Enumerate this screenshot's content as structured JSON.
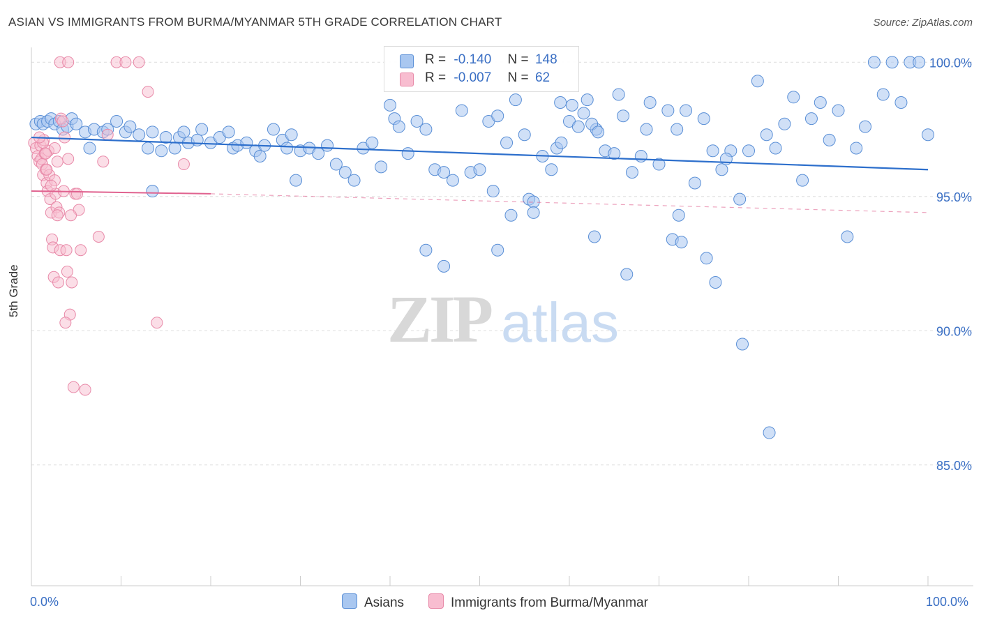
{
  "header": {
    "title": "ASIAN VS IMMIGRANTS FROM BURMA/MYANMAR 5TH GRADE CORRELATION CHART",
    "source": "Source: ZipAtlas.com"
  },
  "watermark": {
    "zip": "ZIP",
    "atlas": "atlas"
  },
  "stats_legend": {
    "rows": [
      {
        "r_label": "R =",
        "r_value": "-0.140",
        "n_label": "N =",
        "n_value": "148",
        "color": "#a9c7f0"
      },
      {
        "r_label": "R =",
        "r_value": "-0.007",
        "n_label": "N =",
        "n_value": "62",
        "color": "#f8bdd0"
      }
    ]
  },
  "bottom_legend": {
    "items": [
      {
        "label": "Asians",
        "color": "#a9c7f0"
      },
      {
        "label": "Immigrants from Burma/Myanmar",
        "color": "#f8bdd0"
      }
    ]
  },
  "chart_data": {
    "type": "scatter",
    "title": "ASIAN VS IMMIGRANTS FROM BURMA/MYANMAR 5TH GRADE CORRELATION CHART",
    "xlabel": "",
    "ylabel": "5th Grade",
    "xlim": [
      0,
      100
    ],
    "ylim": [
      80.5,
      100.5
    ],
    "x_tick_labels": [
      "0.0%",
      "100.0%"
    ],
    "y_ticks": [
      {
        "value": 100,
        "label": "100.0%"
      },
      {
        "value": 95,
        "label": "95.0%"
      },
      {
        "value": 90,
        "label": "90.0%"
      },
      {
        "value": 85,
        "label": "85.0%"
      }
    ],
    "grid": true,
    "legend_position": "top-center",
    "colors": {
      "asians_fill": "#a9c7f0",
      "asians_stroke": "#5a8fd6",
      "asians_line": "#2d6fcc",
      "burma_fill": "#f8bdd0",
      "burma_stroke": "#e889a8",
      "burma_line": "#e0628f"
    },
    "series": [
      {
        "name": "Asians",
        "r": -0.14,
        "n": 148,
        "trend": {
          "x": [
            0,
            100
          ],
          "y": [
            97.2,
            96.0
          ]
        },
        "points": [
          [
            0.5,
            97.7
          ],
          [
            1,
            97.8
          ],
          [
            1.3,
            97.7
          ],
          [
            1.8,
            97.8
          ],
          [
            2.2,
            97.9
          ],
          [
            2.6,
            97.7
          ],
          [
            3.1,
            97.8
          ],
          [
            3.5,
            97.5
          ],
          [
            4,
            97.6
          ],
          [
            4.5,
            97.9
          ],
          [
            5,
            97.7
          ],
          [
            6,
            97.4
          ],
          [
            6.5,
            96.8
          ],
          [
            7,
            97.5
          ],
          [
            8,
            97.4
          ],
          [
            8.5,
            97.5
          ],
          [
            9.5,
            97.8
          ],
          [
            10.5,
            97.4
          ],
          [
            11,
            97.6
          ],
          [
            12,
            97.3
          ],
          [
            13,
            96.8
          ],
          [
            13.5,
            97.4
          ],
          [
            14.5,
            96.7
          ],
          [
            15,
            97.2
          ],
          [
            16,
            96.8
          ],
          [
            16.5,
            97.2
          ],
          [
            17,
            97.4
          ],
          [
            17.5,
            97.0
          ],
          [
            18.5,
            97.1
          ],
          [
            19,
            97.5
          ],
          [
            20,
            97.0
          ],
          [
            21,
            97.2
          ],
          [
            22,
            97.4
          ],
          [
            22.5,
            96.8
          ],
          [
            23,
            96.9
          ],
          [
            24,
            97.0
          ],
          [
            25,
            96.7
          ],
          [
            25.5,
            96.5
          ],
          [
            26,
            96.9
          ],
          [
            27,
            97.5
          ],
          [
            28,
            97.1
          ],
          [
            28.5,
            96.8
          ],
          [
            29,
            97.3
          ],
          [
            30,
            96.7
          ],
          [
            31,
            96.8
          ],
          [
            32,
            96.6
          ],
          [
            33,
            96.9
          ],
          [
            34,
            96.2
          ],
          [
            35,
            95.9
          ],
          [
            36,
            95.6
          ],
          [
            37,
            96.8
          ],
          [
            38,
            97.0
          ],
          [
            39,
            96.1
          ],
          [
            40,
            98.4
          ],
          [
            40.5,
            97.9
          ],
          [
            41,
            97.6
          ],
          [
            42,
            96.6
          ],
          [
            43,
            97.8
          ],
          [
            44,
            97.5
          ],
          [
            45,
            96.0
          ],
          [
            46,
            95.9
          ],
          [
            47,
            95.6
          ],
          [
            48,
            98.2
          ],
          [
            49,
            95.9
          ],
          [
            50,
            96.0
          ],
          [
            51,
            97.8
          ],
          [
            52,
            98.0
          ],
          [
            53,
            97.0
          ],
          [
            54,
            98.6
          ],
          [
            55,
            97.3
          ],
          [
            55.5,
            94.9
          ],
          [
            56,
            94.8
          ],
          [
            57,
            96.5
          ],
          [
            58,
            96.0
          ],
          [
            59,
            98.5
          ],
          [
            60,
            97.8
          ],
          [
            61,
            97.6
          ],
          [
            62,
            98.6
          ],
          [
            63,
            97.5
          ],
          [
            64,
            96.7
          ],
          [
            65,
            96.6
          ],
          [
            66,
            98.0
          ],
          [
            67,
            95.9
          ],
          [
            68,
            96.5
          ],
          [
            69,
            98.5
          ],
          [
            70,
            96.2
          ],
          [
            71,
            98.2
          ],
          [
            72,
            97.5
          ],
          [
            73,
            98.2
          ],
          [
            74,
            95.5
          ],
          [
            75,
            97.9
          ],
          [
            76,
            96.7
          ],
          [
            77,
            96.0
          ],
          [
            78,
            96.7
          ],
          [
            79,
            94.9
          ],
          [
            80,
            96.7
          ],
          [
            81,
            99.3
          ],
          [
            82,
            97.3
          ],
          [
            83,
            96.8
          ],
          [
            84,
            97.7
          ],
          [
            85,
            98.7
          ],
          [
            86,
            95.6
          ],
          [
            87,
            97.9
          ],
          [
            88,
            98.5
          ],
          [
            89,
            97.1
          ],
          [
            90,
            98.2
          ],
          [
            91,
            93.5
          ],
          [
            92,
            96.8
          ],
          [
            93,
            97.6
          ],
          [
            94,
            100.0
          ],
          [
            95,
            98.8
          ],
          [
            96,
            100.0
          ],
          [
            97,
            98.5
          ],
          [
            98,
            100.0
          ],
          [
            99,
            100.0
          ],
          [
            100,
            97.3
          ],
          [
            13.5,
            95.2
          ],
          [
            29.5,
            95.6
          ],
          [
            44,
            93.0
          ],
          [
            46,
            92.4
          ],
          [
            51.5,
            95.2
          ],
          [
            52,
            93.0
          ],
          [
            53.5,
            94.3
          ],
          [
            56,
            94.4
          ],
          [
            62.8,
            93.5
          ],
          [
            65.5,
            98.8
          ],
          [
            66.4,
            92.1
          ],
          [
            71.5,
            93.4
          ],
          [
            72.2,
            94.3
          ],
          [
            72.5,
            93.3
          ],
          [
            75.3,
            92.7
          ],
          [
            76.3,
            91.8
          ],
          [
            77.5,
            96.4
          ],
          [
            79.3,
            89.5
          ],
          [
            82.3,
            86.2
          ],
          [
            68.6,
            97.5
          ],
          [
            58.6,
            96.8
          ],
          [
            59.1,
            97.0
          ],
          [
            60.3,
            98.4
          ],
          [
            61.6,
            98.1
          ],
          [
            62.5,
            97.7
          ],
          [
            63.2,
            97.4
          ]
        ]
      },
      {
        "name": "Immigrants from Burma/Myanmar",
        "r": -0.007,
        "n": 62,
        "trend": {
          "x": [
            0,
            20
          ],
          "y": [
            95.2,
            95.1
          ]
        },
        "points": [
          [
            0.3,
            97.0
          ],
          [
            0.5,
            96.8
          ],
          [
            0.7,
            96.5
          ],
          [
            0.9,
            96.3
          ],
          [
            1.0,
            96.9
          ],
          [
            1.1,
            96.4
          ],
          [
            1.2,
            96.2
          ],
          [
            1.3,
            95.8
          ],
          [
            1.4,
            97.1
          ],
          [
            1.5,
            96.6
          ],
          [
            1.6,
            96.0
          ],
          [
            1.7,
            95.5
          ],
          [
            1.8,
            95.2
          ],
          [
            1.9,
            96.7
          ],
          [
            2.0,
            95.8
          ],
          [
            2.1,
            94.9
          ],
          [
            2.2,
            94.4
          ],
          [
            2.3,
            93.4
          ],
          [
            2.4,
            93.1
          ],
          [
            2.5,
            92.0
          ],
          [
            2.6,
            95.6
          ],
          [
            2.7,
            95.1
          ],
          [
            2.8,
            94.6
          ],
          [
            2.9,
            96.3
          ],
          [
            3.0,
            91.8
          ],
          [
            3.1,
            94.4
          ],
          [
            3.2,
            93.0
          ],
          [
            3.3,
            97.9
          ],
          [
            3.5,
            97.8
          ],
          [
            3.7,
            97.2
          ],
          [
            3.9,
            93.0
          ],
          [
            4.0,
            92.2
          ],
          [
            4.1,
            96.4
          ],
          [
            4.3,
            90.6
          ],
          [
            4.5,
            91.8
          ],
          [
            4.7,
            87.9
          ],
          [
            4.9,
            95.1
          ],
          [
            5.1,
            95.1
          ],
          [
            5.3,
            94.5
          ],
          [
            5.5,
            93.0
          ],
          [
            6.0,
            87.8
          ],
          [
            7.5,
            93.5
          ],
          [
            8.0,
            96.3
          ],
          [
            8.5,
            97.3
          ],
          [
            9.5,
            100.0
          ],
          [
            10.5,
            100.0
          ],
          [
            12.0,
            100.0
          ],
          [
            13.0,
            98.9
          ],
          [
            14.0,
            90.3
          ],
          [
            17.0,
            96.2
          ],
          [
            3.2,
            100.0
          ],
          [
            4.1,
            100.0
          ],
          [
            1.3,
            97.0
          ],
          [
            1.7,
            96.0
          ],
          [
            2.2,
            95.4
          ],
          [
            2.6,
            96.8
          ],
          [
            3.6,
            95.2
          ],
          [
            3.8,
            90.3
          ],
          [
            4.4,
            94.3
          ],
          [
            0.9,
            97.2
          ],
          [
            1.6,
            96.6
          ],
          [
            2.9,
            94.3
          ]
        ]
      }
    ]
  }
}
